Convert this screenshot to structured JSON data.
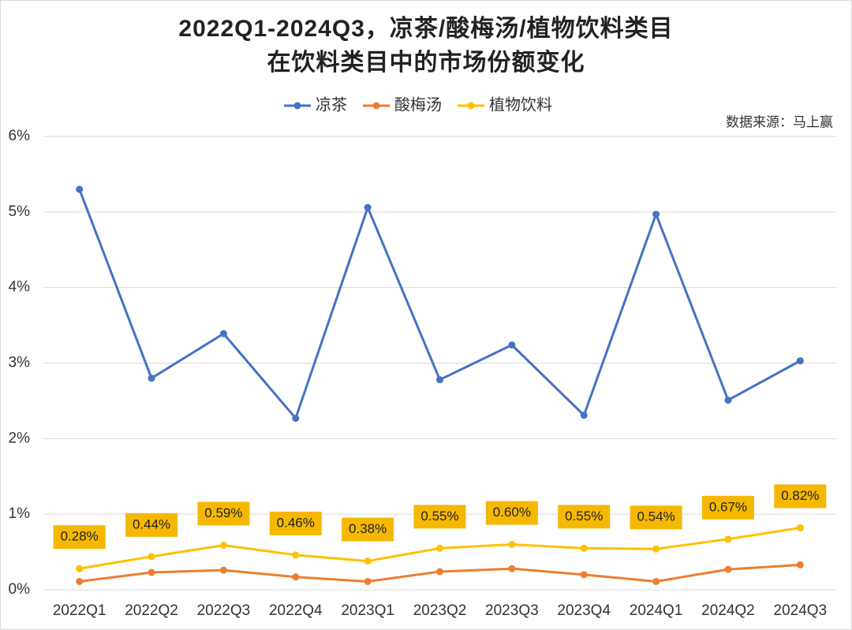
{
  "chart_data": {
    "type": "line",
    "title": [
      "2022Q1-2024Q3，凉茶/酸梅汤/植物饮料类目",
      "在饮料类目中的市场份额变化"
    ],
    "annotation": "数据来源：马上赢",
    "categories": [
      "2022Q1",
      "2022Q2",
      "2022Q3",
      "2022Q4",
      "2023Q1",
      "2023Q2",
      "2023Q3",
      "2023Q4",
      "2024Q1",
      "2024Q2",
      "2024Q3"
    ],
    "series": [
      {
        "name": "凉茶",
        "color": "#4472c4",
        "values": [
          5.3,
          2.8,
          3.39,
          2.27,
          5.06,
          2.78,
          3.24,
          2.31,
          4.97,
          2.51,
          3.03
        ]
      },
      {
        "name": "酸梅汤",
        "color": "#ed7d31",
        "values": [
          0.11,
          0.23,
          0.26,
          0.17,
          0.11,
          0.24,
          0.28,
          0.2,
          0.11,
          0.27,
          0.33
        ]
      },
      {
        "name": "植物饮料",
        "color": "#ffc000",
        "values": [
          0.28,
          0.44,
          0.59,
          0.46,
          0.38,
          0.55,
          0.6,
          0.55,
          0.54,
          0.67,
          0.82
        ],
        "value_labels": [
          "0.28%",
          "0.44%",
          "0.59%",
          "0.46%",
          "0.38%",
          "0.55%",
          "0.60%",
          "0.55%",
          "0.54%",
          "0.67%",
          "0.82%"
        ]
      }
    ],
    "ylim": [
      0,
      6
    ],
    "yticks": [
      {
        "value": 0,
        "label": "0%"
      },
      {
        "value": 1,
        "label": "1%"
      },
      {
        "value": 2,
        "label": "2%"
      },
      {
        "value": 3,
        "label": "3%"
      },
      {
        "value": 4,
        "label": "4%"
      },
      {
        "value": 5,
        "label": "5%"
      },
      {
        "value": 6,
        "label": "6%"
      }
    ],
    "grid": true,
    "legend": "top"
  }
}
